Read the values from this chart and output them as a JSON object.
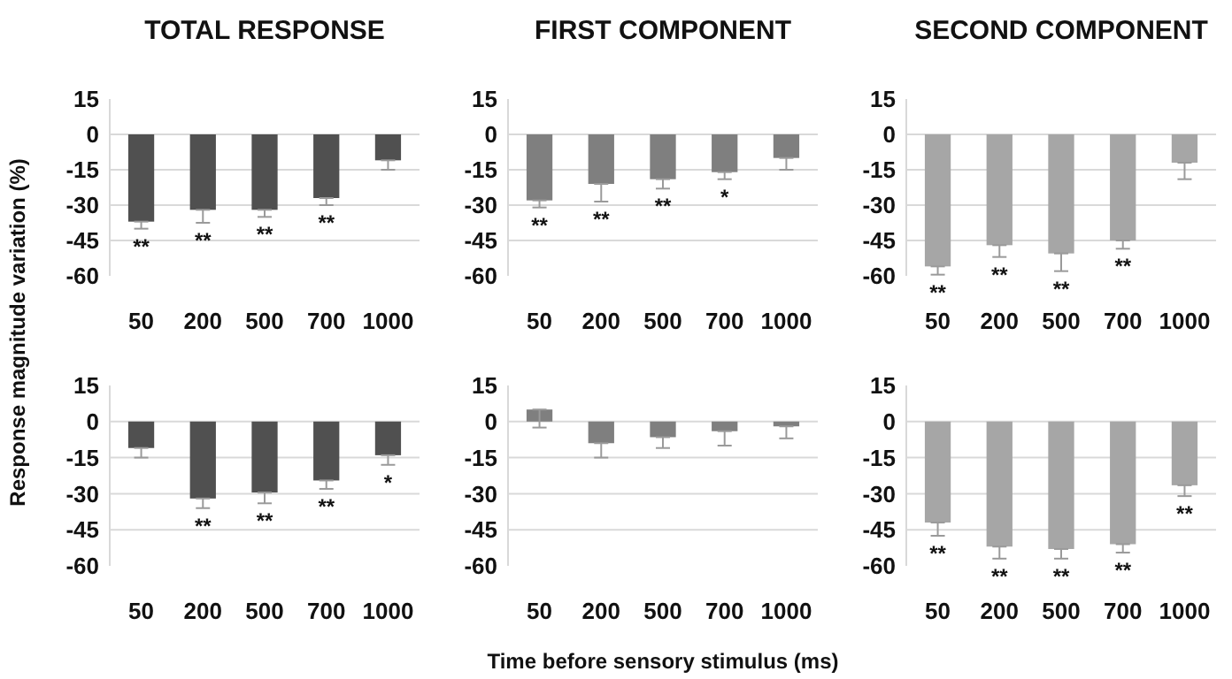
{
  "chart_data": [
    {
      "type": "bar",
      "title": "TOTAL RESPONSE",
      "ylabel": "Response magnitude variation (%)",
      "categories": [
        "50",
        "200",
        "500",
        "700",
        "1000"
      ],
      "values": [
        -37,
        -32,
        -32,
        -27,
        -11
      ],
      "errors": [
        [
          -40,
          -37
        ],
        [
          -37.5,
          -32
        ],
        [
          -35,
          -32
        ],
        [
          -30,
          -27
        ],
        [
          -15,
          -11
        ]
      ],
      "color": "#505050",
      "ylim": [
        -60,
        15
      ],
      "yticks": [
        15,
        0,
        -15,
        -30,
        -45,
        -60
      ],
      "grid": "y",
      "annotations": [
        {
          "text": "**",
          "x": "50",
          "y": -40
        },
        {
          "text": "**",
          "x": "200",
          "y": -37.5
        },
        {
          "text": "**",
          "x": "500",
          "y": -35
        },
        {
          "text": "**",
          "x": "700",
          "y": -30
        }
      ]
    },
    {
      "type": "bar",
      "title": "FIRST COMPONENT",
      "categories": [
        "50",
        "200",
        "500",
        "700",
        "1000"
      ],
      "values": [
        -28,
        -21,
        -19,
        -16,
        -10
      ],
      "errors": [
        [
          -31,
          -28
        ],
        [
          -28.5,
          -21
        ],
        [
          -23,
          -19
        ],
        [
          -19,
          -16
        ],
        [
          -15,
          -10
        ]
      ],
      "color": "#7f7f7f",
      "ylim": [
        -60,
        15
      ],
      "yticks": [
        15,
        0,
        -15,
        -30,
        -45,
        -60
      ],
      "grid": "y",
      "annotations": [
        {
          "text": "**",
          "x": "50",
          "y": -31
        },
        {
          "text": "**",
          "x": "200",
          "y": -28.5
        },
        {
          "text": "**",
          "x": "500",
          "y": -23
        },
        {
          "text": "*",
          "x": "700",
          "y": -19
        }
      ]
    },
    {
      "type": "bar",
      "title": "SECOND COMPONENT",
      "categories": [
        "50",
        "200",
        "500",
        "700",
        "1000"
      ],
      "values": [
        -56,
        -47,
        -50.5,
        -45,
        -12
      ],
      "errors": [
        [
          -59.5,
          -56
        ],
        [
          -52,
          -47
        ],
        [
          -58,
          -50.5
        ],
        [
          -48.5,
          -45
        ],
        [
          -19,
          -12
        ]
      ],
      "color": "#a6a6a6",
      "ylim": [
        -60,
        15
      ],
      "yticks": [
        15,
        0,
        -15,
        -30,
        -45,
        -60
      ],
      "grid": "y",
      "annotations": [
        {
          "text": "**",
          "x": "50",
          "y": -59.5
        },
        {
          "text": "**",
          "x": "200",
          "y": -52
        },
        {
          "text": "**",
          "x": "500",
          "y": -58
        },
        {
          "text": "**",
          "x": "700",
          "y": -48.5
        }
      ]
    },
    {
      "type": "bar",
      "categories": [
        "50",
        "200",
        "500",
        "700",
        "1000"
      ],
      "values": [
        -11,
        -32,
        -29.5,
        -24.5,
        -14
      ],
      "errors": [
        [
          -15,
          -11
        ],
        [
          -36,
          -32
        ],
        [
          -34,
          -29.5
        ],
        [
          -28,
          -24.5
        ],
        [
          -18,
          -14
        ]
      ],
      "color": "#505050",
      "ylim": [
        -60,
        15
      ],
      "yticks": [
        15,
        0,
        -15,
        -30,
        -45,
        -60
      ],
      "grid": "y",
      "annotations": [
        {
          "text": "**",
          "x": "200",
          "y": -36
        },
        {
          "text": "**",
          "x": "500",
          "y": -34
        },
        {
          "text": "**",
          "x": "700",
          "y": -28
        },
        {
          "text": "*",
          "x": "1000",
          "y": -18
        }
      ]
    },
    {
      "type": "bar",
      "xlabel": "Time before sensory stimulus (ms)",
      "categories": [
        "50",
        "200",
        "500",
        "700",
        "1000"
      ],
      "values": [
        5,
        -9,
        -6.5,
        -4,
        -2
      ],
      "errors": [
        [
          -2.5,
          5
        ],
        [
          -15,
          -9
        ],
        [
          -11,
          -6.5
        ],
        [
          -10,
          -4
        ],
        [
          -7,
          -2
        ]
      ],
      "color": "#7f7f7f",
      "ylim": [
        -60,
        15
      ],
      "yticks": [
        15,
        0,
        -15,
        -30,
        -45,
        -60
      ],
      "grid": "y"
    },
    {
      "type": "bar",
      "categories": [
        "50",
        "200",
        "500",
        "700",
        "1000"
      ],
      "values": [
        -42,
        -52,
        -53,
        -51,
        -26.5
      ],
      "errors": [
        [
          -47.5,
          -42
        ],
        [
          -57,
          -52
        ],
        [
          -57,
          -53
        ],
        [
          -54.5,
          -51
        ],
        [
          -31,
          -26.5
        ]
      ],
      "color": "#a6a6a6",
      "ylim": [
        -60,
        15
      ],
      "yticks": [
        15,
        0,
        -15,
        -30,
        -45,
        -60
      ],
      "grid": "y",
      "annotations": [
        {
          "text": "**",
          "x": "50",
          "y": -47.5
        },
        {
          "text": "**",
          "x": "200",
          "y": -57
        },
        {
          "text": "**",
          "x": "500",
          "y": -57
        },
        {
          "text": "**",
          "x": "700",
          "y": -54.5
        },
        {
          "text": "**",
          "x": "1000",
          "y": -31
        }
      ]
    }
  ]
}
